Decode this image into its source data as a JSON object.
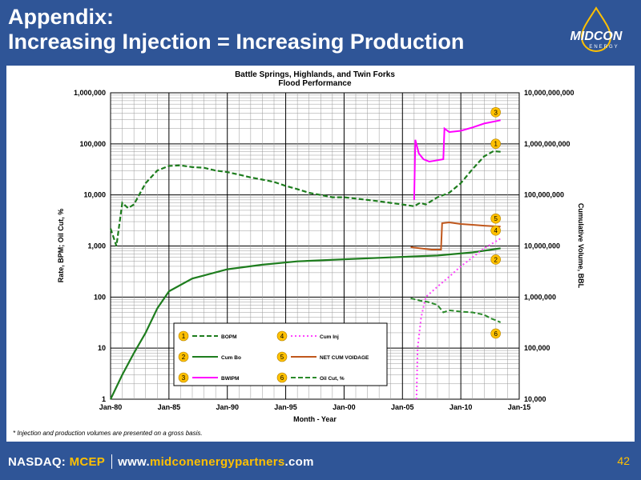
{
  "slide": {
    "title_line1": "Appendix:",
    "title_line2": "Increasing Injection = Increasing Production",
    "footnote": "* Injection and production volumes are presented on a gross basis.",
    "page_number": "42"
  },
  "logo": {
    "text_main": "MIDCON",
    "text_sub": "ENERGY"
  },
  "footer": {
    "exchange": "NASDAQ: ",
    "ticker": "MCEP",
    "url_prefix": "www.",
    "url_brand": "midconenergypartners",
    "url_suffix": ".com"
  },
  "colors": {
    "brand_blue": "#2f5597",
    "accent_yellow": "#ffc000",
    "bopm": "#1e7d1e",
    "cum_inj": "#ff44ff",
    "bwipm": "#ff00ff",
    "voidage": "#c0571c",
    "oil_cut": "#2a8a2a"
  },
  "chart_data": {
    "type": "line",
    "title": "Battle Springs, Highlands, and Twin Forks",
    "subtitle": "Flood Performance",
    "xlabel": "Month - Year",
    "ylabel_left": "Rate, BPM; Oil Cut, %",
    "ylabel_right": "Cumulative Volume, BBL",
    "x_ticks": [
      "Jan-80",
      "Jan-85",
      "Jan-90",
      "Jan-95",
      "Jan-00",
      "Jan-05",
      "Jan-10",
      "Jan-15"
    ],
    "xlim": [
      1980,
      2015
    ],
    "y_left_scale": "log",
    "y_left_lim": [
      1,
      1000000
    ],
    "y_left_ticks": [
      "1",
      "10",
      "100",
      "1,000",
      "10,000",
      "100,000",
      "1,000,000"
    ],
    "y_right_scale": "log",
    "y_right_lim": [
      10000,
      10000000000
    ],
    "y_right_ticks": [
      "10,000",
      "100,000",
      "1,000,000",
      "10,000,000",
      "100,000,000",
      "1,000,000,000",
      "10,000,000,000"
    ],
    "grid": true,
    "legend_position": "bottom-center",
    "series": [
      {
        "id": 1,
        "name": "BOPM",
        "axis": "left",
        "style": "dashed",
        "x": [
          1980,
          1980.5,
          1981,
          1981.5,
          1982,
          1983,
          1984,
          1985,
          1986,
          1987,
          1988,
          1989,
          1990,
          1991,
          1992,
          1993,
          1994,
          1995,
          1996,
          1997,
          1998,
          1999,
          2000,
          2001,
          2002,
          2003,
          2004,
          2005,
          2006,
          2006.5,
          2007,
          2008,
          2009,
          2010,
          2011,
          2012,
          2012.8,
          2013.4
        ],
        "y": [
          2200,
          1000,
          7000,
          5500,
          6500,
          17000,
          30000,
          37000,
          38000,
          35000,
          34000,
          30000,
          28000,
          25000,
          22000,
          20000,
          18000,
          15000,
          13000,
          11000,
          10000,
          9000,
          9000,
          8500,
          8000,
          7500,
          7000,
          6500,
          6000,
          7000,
          6500,
          9000,
          11000,
          17000,
          32000,
          57000,
          72000,
          70000
        ]
      },
      {
        "id": 2,
        "name": "Cum Bo",
        "axis": "right",
        "style": "solid",
        "x": [
          1980,
          1981,
          1982,
          1983,
          1984,
          1985,
          1987,
          1990,
          1993,
          1996,
          2000,
          2004,
          2008,
          2011,
          2013.4
        ],
        "y": [
          10000,
          30000,
          80000,
          200000,
          600000,
          1300000,
          2300000,
          3500000,
          4300000,
          5000000,
          5500000,
          6000000,
          6500000,
          7500000,
          9000000
        ]
      },
      {
        "id": 3,
        "name": "BWIPM",
        "axis": "left",
        "style": "solid",
        "x": [
          2006,
          2006.1,
          2006.4,
          2006.8,
          2007.3,
          2007.8,
          2008.5,
          2008.6,
          2009,
          2010,
          2011,
          2012,
          2013.4
        ],
        "y": [
          8000,
          120000,
          65000,
          50000,
          45000,
          47000,
          50000,
          200000,
          170000,
          180000,
          210000,
          250000,
          290000
        ]
      },
      {
        "id": 4,
        "name": "Cum Inj",
        "axis": "right",
        "style": "dotted",
        "x": [
          2006.2,
          2006.3,
          2006.6,
          2007,
          2008,
          2009,
          2010,
          2011,
          2012,
          2013.4
        ],
        "y": [
          10000,
          100000,
          400000,
          1000000,
          1600000,
          2500000,
          4000000,
          6000000,
          9000000,
          14000000
        ]
      },
      {
        "id": 5,
        "name": "NET CUM VOIDAGE",
        "axis": "right",
        "style": "solid",
        "x": [
          2005.7,
          2006.5,
          2007.5,
          2008.3,
          2008.4,
          2009,
          2010,
          2011,
          2012,
          2013.4
        ],
        "y": [
          9500000,
          9000000,
          8500000,
          8500000,
          28000000,
          29000000,
          27000000,
          26000000,
          25000000,
          24000000
        ]
      },
      {
        "id": 6,
        "name": "Oil Cut, %",
        "axis": "left",
        "style": "dashed",
        "x": [
          2005.7,
          2006.5,
          2007.2,
          2008,
          2008.5,
          2009,
          2010,
          2011,
          2012,
          2012.6,
          2013,
          2013.4
        ],
        "y": [
          95,
          85,
          80,
          70,
          50,
          55,
          52,
          50,
          45,
          38,
          35,
          32
        ]
      }
    ]
  }
}
